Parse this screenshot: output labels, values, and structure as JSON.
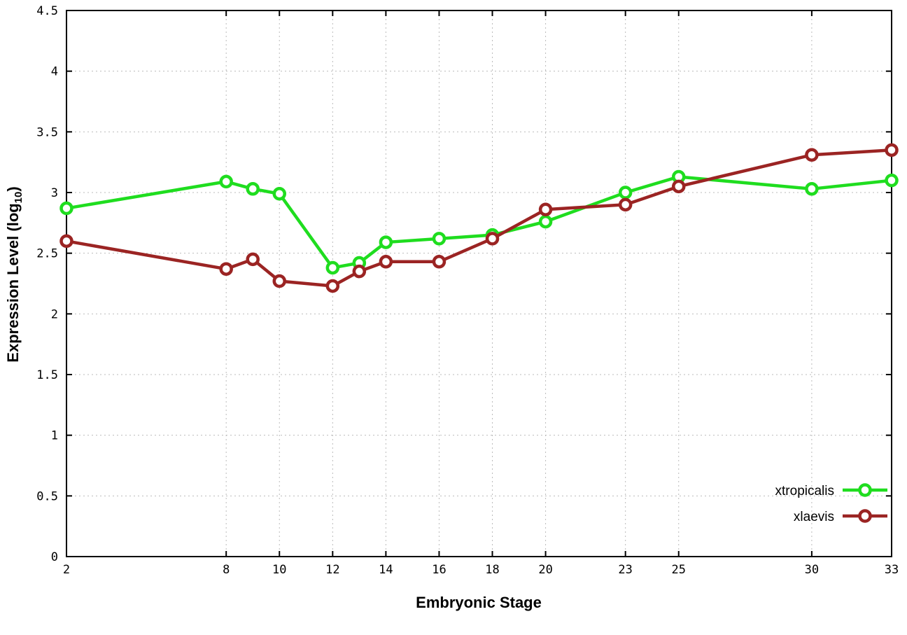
{
  "chart_data": {
    "type": "line",
    "title": "",
    "xlabel": "Embryonic Stage",
    "ylabel": "Expression Level (log10)",
    "ylabel_parts": {
      "prefix": "Expression Level (log",
      "subscript": "10",
      "suffix": ")"
    },
    "x": [
      2,
      8,
      9,
      10,
      12,
      13,
      14,
      16,
      18,
      20,
      23,
      25,
      30,
      33
    ],
    "xticks": [
      2,
      8,
      10,
      12,
      14,
      16,
      18,
      20,
      23,
      25,
      30,
      33
    ],
    "xlim": [
      2,
      33
    ],
    "ylim": [
      0,
      4.5
    ],
    "ytick_step": 0.5,
    "grid": true,
    "grid_color": "#bbbbbb",
    "border_color": "#000000",
    "legend_position": "bottom-right",
    "series": [
      {
        "name": "xtropicalis",
        "color": "#1fdd1f",
        "values": [
          2.87,
          3.09,
          3.03,
          2.99,
          2.38,
          2.42,
          2.59,
          2.62,
          2.65,
          2.76,
          3.0,
          3.13,
          3.03,
          3.1
        ]
      },
      {
        "name": "xlaevis",
        "color": "#9b2423",
        "values": [
          2.6,
          2.37,
          2.45,
          2.27,
          2.23,
          2.35,
          2.43,
          2.43,
          2.62,
          2.86,
          2.9,
          3.05,
          3.31,
          3.35
        ]
      }
    ]
  }
}
